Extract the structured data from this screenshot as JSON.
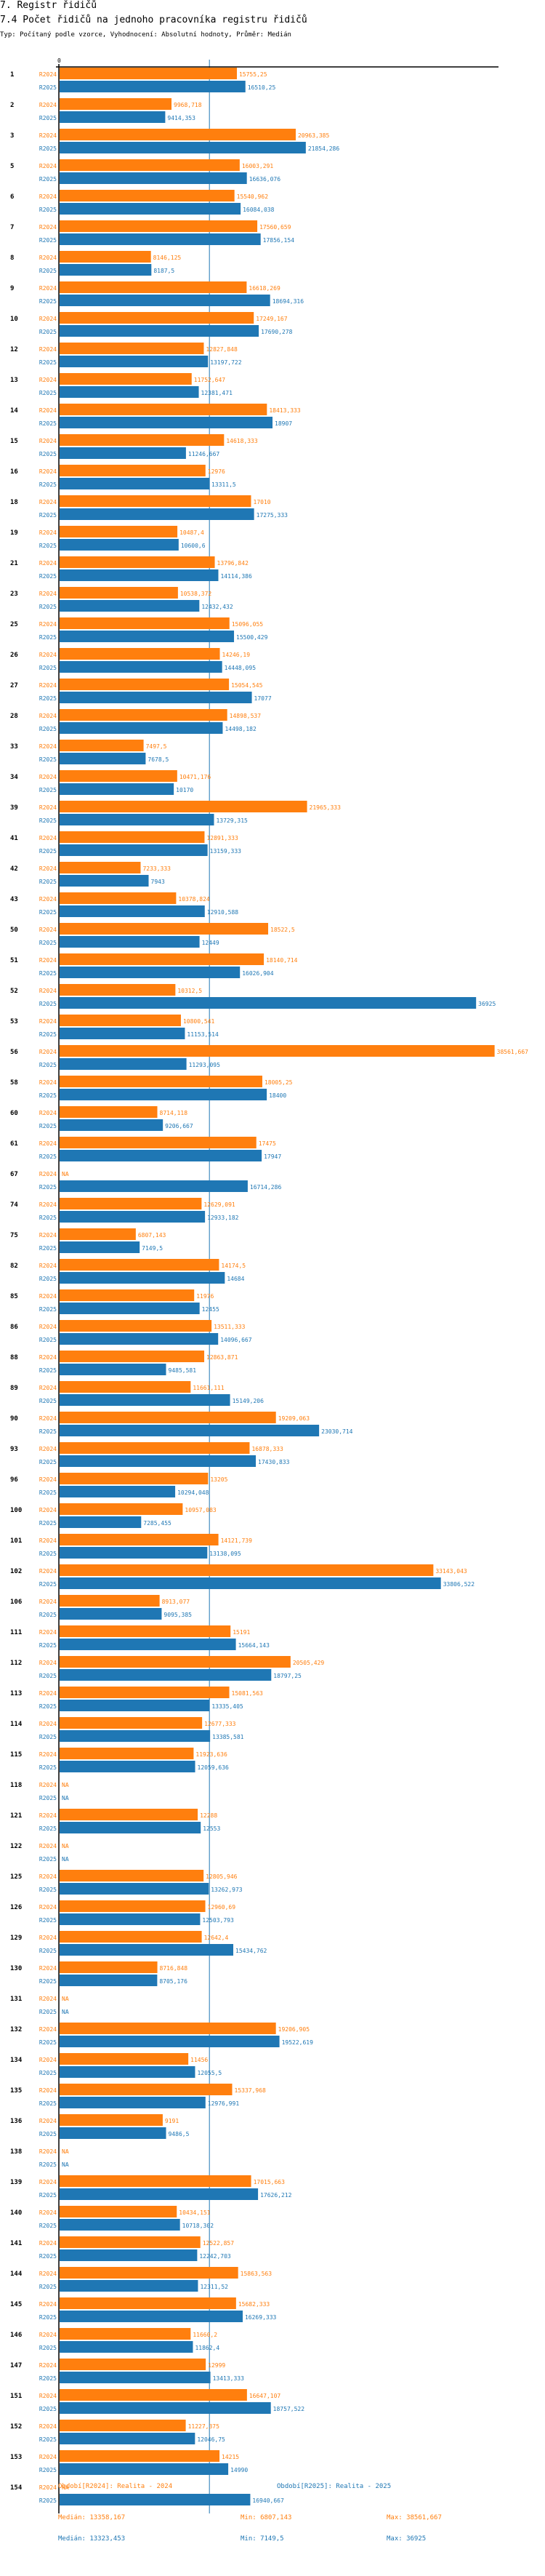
{
  "header": {
    "section_title": "7. Registr řidičů",
    "chart_title": "7.4 Počet řidičů na jednoho pracovníka registru řidičů",
    "subtitle": "Typ: Počítaný podle vzorce, Vyhodnocení: Absolutní hodnoty, Průměr: Medián"
  },
  "colors": {
    "R2024": "#ff7f0e",
    "R2025": "#1f77b4",
    "axis": "#000000",
    "median_line": "#1f77b4"
  },
  "chart_data": {
    "type": "bar",
    "orientation": "horizontal",
    "title": "7.4 Počet řidičů na jednoho pracovníka registru řidičů",
    "xlabel": "",
    "ylabel": "",
    "x_tick_labels": [
      "0"
    ],
    "xlim": [
      0,
      38561.667
    ],
    "grid": false,
    "reference_line": {
      "label": "Medián",
      "value": 13323.453
    },
    "series": [
      {
        "name": "R2024",
        "label": "Období[R2024]: Realita - 2024"
      },
      {
        "name": "R2025",
        "label": "Období[R2025]: Realita - 2025"
      }
    ],
    "categories": [
      "1",
      "2",
      "3",
      "5",
      "6",
      "7",
      "8",
      "9",
      "10",
      "12",
      "13",
      "14",
      "15",
      "16",
      "18",
      "19",
      "21",
      "23",
      "25",
      "26",
      "27",
      "28",
      "33",
      "34",
      "39",
      "41",
      "42",
      "43",
      "50",
      "51",
      "52",
      "53",
      "56",
      "58",
      "60",
      "61",
      "67",
      "74",
      "75",
      "82",
      "85",
      "86",
      "88",
      "89",
      "90",
      "93",
      "96",
      "100",
      "101",
      "102",
      "106",
      "111",
      "112",
      "113",
      "114",
      "115",
      "118",
      "121",
      "122",
      "125",
      "126",
      "129",
      "130",
      "131",
      "132",
      "134",
      "135",
      "136",
      "138",
      "139",
      "140",
      "141",
      "144",
      "145",
      "146",
      "147",
      "151",
      "152",
      "153",
      "154"
    ],
    "values_R2024": [
      15755.25,
      9968.718,
      20963.385,
      16003.291,
      15540.962,
      17560.659,
      8146.125,
      16618.269,
      17249.167,
      12827.848,
      11752.647,
      18413.333,
      14618.333,
      12976,
      17010,
      10487.4,
      13796.842,
      10538.372,
      15096.055,
      14246.19,
      15054.545,
      14898.537,
      7497.5,
      10471.176,
      21965.333,
      12891.333,
      7233.333,
      10378.824,
      18522.5,
      18140.714,
      10312.5,
      10800.541,
      38561.667,
      18005.25,
      8714.118,
      17475,
      null,
      12629.091,
      6807.143,
      14174.5,
      11976,
      13511.333,
      12863.871,
      11661.111,
      19209.063,
      16878.333,
      13205,
      10957.083,
      14121.739,
      33143.043,
      8913.077,
      15191,
      20505.429,
      15081.563,
      12677.333,
      11923.636,
      null,
      12288,
      null,
      12805.946,
      12960.69,
      12642.4,
      8716.848,
      null,
      19206.905,
      11456,
      15337.968,
      9191,
      null,
      17015.663,
      10434.151,
      12522.857,
      15863.563,
      15682.333,
      11660.2,
      12999,
      16647.107,
      11227.375,
      14215,
      null
    ],
    "values_R2025": [
      16510.25,
      9414.353,
      21854.286,
      16636.076,
      16084.038,
      17856.154,
      8187.5,
      18694.316,
      17690.278,
      13197.722,
      12381.471,
      18907,
      11246.667,
      13311.5,
      17275.333,
      10600.6,
      14114.386,
      12432.432,
      15500.429,
      14448.095,
      17077,
      14498.182,
      7678.5,
      10170,
      13729.315,
      13159.333,
      7943,
      12910.588,
      12449,
      16026.904,
      36925,
      11153.514,
      11293.095,
      18400,
      9206.667,
      17947,
      16714.286,
      12933.182,
      7149.5,
      14684,
      12455,
      14096.667,
      9485.581,
      15149.206,
      23030.714,
      17430.833,
      10294.048,
      7285.455,
      13138.095,
      33806.522,
      9095.385,
      15664.143,
      18797.25,
      13335.405,
      13385.581,
      12059.636,
      null,
      12553,
      null,
      13262.973,
      12503.793,
      15434.762,
      8705.176,
      null,
      19522.619,
      12055.5,
      12976.991,
      9486.5,
      null,
      17626.212,
      10718.302,
      12242.703,
      12311.52,
      16269.333,
      11862.4,
      13413.333,
      18757.522,
      12046.75,
      14990,
      16940.667
    ],
    "labels_R2024": [
      "15755,25",
      "9968,718",
      "20963,385",
      "16003,291",
      "15540,962",
      "17560,659",
      "8146,125",
      "16618,269",
      "17249,167",
      "12827,848",
      "11752,647",
      "18413,333",
      "14618,333",
      "12976",
      "17010",
      "10487,4",
      "13796,842",
      "10538,372",
      "15096,055",
      "14246,19",
      "15054,545",
      "14898,537",
      "7497,5",
      "10471,176",
      "21965,333",
      "12891,333",
      "7233,333",
      "10378,824",
      "18522,5",
      "18140,714",
      "10312,5",
      "10800,541",
      "38561,667",
      "18005,25",
      "8714,118",
      "17475",
      "NA",
      "12629,091",
      "6807,143",
      "14174,5",
      "11976",
      "13511,333",
      "12863,871",
      "11661,111",
      "19209,063",
      "16878,333",
      "13205",
      "10957,083",
      "14121,739",
      "33143,043",
      "8913,077",
      "15191",
      "20505,429",
      "15081,563",
      "12677,333",
      "11923,636",
      "NA",
      "12288",
      "NA",
      "12805,946",
      "12960,69",
      "12642,4",
      "8716,848",
      "NA",
      "19206,905",
      "11456",
      "15337,968",
      "9191",
      "NA",
      "17015,663",
      "10434,151",
      "12522,857",
      "15863,563",
      "15682,333",
      "11660,2",
      "12999",
      "16647,107",
      "11227,375",
      "14215",
      "NA"
    ],
    "labels_R2025": [
      "16510,25",
      "9414,353",
      "21854,286",
      "16636,076",
      "16084,038",
      "17856,154",
      "8187,5",
      "18694,316",
      "17690,278",
      "13197,722",
      "12381,471",
      "18907",
      "11246,667",
      "13311,5",
      "17275,333",
      "10600,6",
      "14114,386",
      "12432,432",
      "15500,429",
      "14448,095",
      "17077",
      "14498,182",
      "7678,5",
      "10170",
      "13729,315",
      "13159,333",
      "7943",
      "12910,588",
      "12449",
      "16026,904",
      "36925",
      "11153,514",
      "11293,095",
      "18400",
      "9206,667",
      "17947",
      "16714,286",
      "12933,182",
      "7149,5",
      "14684",
      "12455",
      "14096,667",
      "9485,581",
      "15149,206",
      "23030,714",
      "17430,833",
      "10294,048",
      "7285,455",
      "13138,095",
      "33806,522",
      "9095,385",
      "15664,143",
      "18797,25",
      "13335,405",
      "13385,581",
      "12059,636",
      "NA",
      "12553",
      "NA",
      "13262,973",
      "12503,793",
      "15434,762",
      "8705,176",
      "NA",
      "19522,619",
      "12055,5",
      "12976,991",
      "9486,5",
      "NA",
      "17626,212",
      "10718,302",
      "12242,703",
      "12311,52",
      "16269,333",
      "11862,4",
      "13413,333",
      "18757,522",
      "12046,75",
      "14990",
      "16940,667"
    ]
  },
  "footer": {
    "legend_R2024": "Období[R2024]: Realita - 2024",
    "legend_R2025": "Období[R2025]: Realita - 2025",
    "R2024": {
      "median": "Medián: 13358,167",
      "min": "Min: 6807,143",
      "max": "Max: 38561,667"
    },
    "R2025": {
      "median": "Medián: 13323,453",
      "min": "Min: 7149,5",
      "max": "Max: 36925"
    }
  }
}
